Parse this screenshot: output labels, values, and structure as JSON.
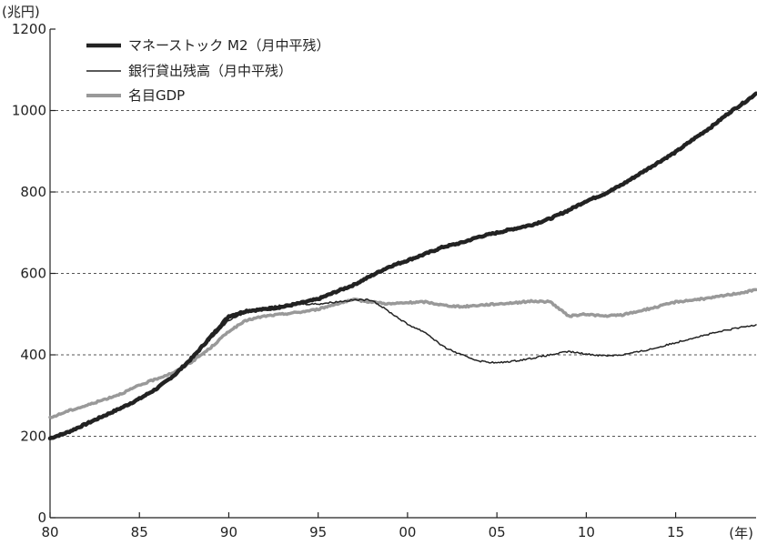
{
  "chart_data": {
    "type": "line",
    "y_unit_label": "(兆円)",
    "x_unit_label": "(年)",
    "x_ticks": [
      1980,
      1985,
      1990,
      1995,
      2000,
      2005,
      2010,
      2015
    ],
    "x_tick_labels": [
      "80",
      "85",
      "90",
      "95",
      "00",
      "05",
      "10",
      "15"
    ],
    "xlim": [
      1980,
      2019.5
    ],
    "y_ticks": [
      0,
      200,
      400,
      600,
      800,
      1000,
      1200
    ],
    "y_tick_labels": [
      "0",
      "200",
      "400",
      "600",
      "800",
      "1000",
      "1200"
    ],
    "ylim": [
      0,
      1200
    ],
    "grid": "horizontal dashed at 200, 400, 600, 800, 1000",
    "legend_placement": "top-left",
    "series": [
      {
        "name": "マネーストック M2（月中平残）",
        "color": "#222222",
        "style": "thick",
        "x": [
          1980,
          1981,
          1982,
          1983,
          1984,
          1985,
          1986,
          1987,
          1988,
          1989,
          1990,
          1991,
          1992,
          1993,
          1994,
          1995,
          1996,
          1997,
          1998,
          1999,
          2000,
          2001,
          2002,
          2003,
          2004,
          2005,
          2006,
          2007,
          2008,
          2009,
          2010,
          2011,
          2012,
          2013,
          2014,
          2015,
          2016,
          2017,
          2018,
          2019,
          2019.5
        ],
        "y": [
          195,
          210,
          230,
          250,
          270,
          292,
          318,
          352,
          395,
          445,
          495,
          508,
          512,
          518,
          527,
          537,
          555,
          572,
          595,
          617,
          632,
          648,
          665,
          675,
          690,
          700,
          710,
          720,
          735,
          755,
          778,
          795,
          818,
          845,
          872,
          898,
          930,
          960,
          995,
          1025,
          1042
        ]
      },
      {
        "name": "銀行貸出残高（月中平残）",
        "color": "#222222",
        "style": "thin",
        "x": [
          1980,
          1981,
          1982,
          1983,
          1984,
          1985,
          1986,
          1987,
          1988,
          1989,
          1990,
          1991,
          1992,
          1993,
          1994,
          1995,
          1996,
          1997,
          1998,
          1999,
          2000,
          2001,
          2002,
          2003,
          2004,
          2005,
          2006,
          2007,
          2008,
          2009,
          2010,
          2011,
          2012,
          2013,
          2014,
          2015,
          2016,
          2017,
          2018,
          2019,
          2019.5
        ],
        "y": [
          195,
          210,
          230,
          250,
          270,
          292,
          318,
          352,
          395,
          440,
          485,
          505,
          515,
          522,
          525,
          525,
          530,
          535,
          535,
          505,
          475,
          455,
          420,
          400,
          385,
          380,
          385,
          392,
          400,
          408,
          402,
          398,
          400,
          408,
          418,
          430,
          442,
          452,
          462,
          470,
          474
        ]
      },
      {
        "name": "名目GDP",
        "color": "#999999",
        "style": "medium",
        "x": [
          1980,
          1981,
          1982,
          1983,
          1984,
          1985,
          1986,
          1987,
          1988,
          1989,
          1990,
          1991,
          1992,
          1993,
          1994,
          1995,
          1996,
          1997,
          1998,
          1999,
          2000,
          2001,
          2002,
          2003,
          2004,
          2005,
          2006,
          2007,
          2008,
          2009,
          2010,
          2011,
          2012,
          2013,
          2014,
          2015,
          2016,
          2017,
          2018,
          2019,
          2019.5
        ],
        "y": [
          245,
          262,
          275,
          290,
          305,
          325,
          342,
          358,
          385,
          418,
          458,
          485,
          495,
          500,
          505,
          512,
          525,
          535,
          530,
          525,
          528,
          530,
          522,
          518,
          522,
          525,
          528,
          532,
          530,
          495,
          500,
          495,
          498,
          508,
          518,
          530,
          535,
          540,
          548,
          555,
          560
        ]
      }
    ]
  }
}
